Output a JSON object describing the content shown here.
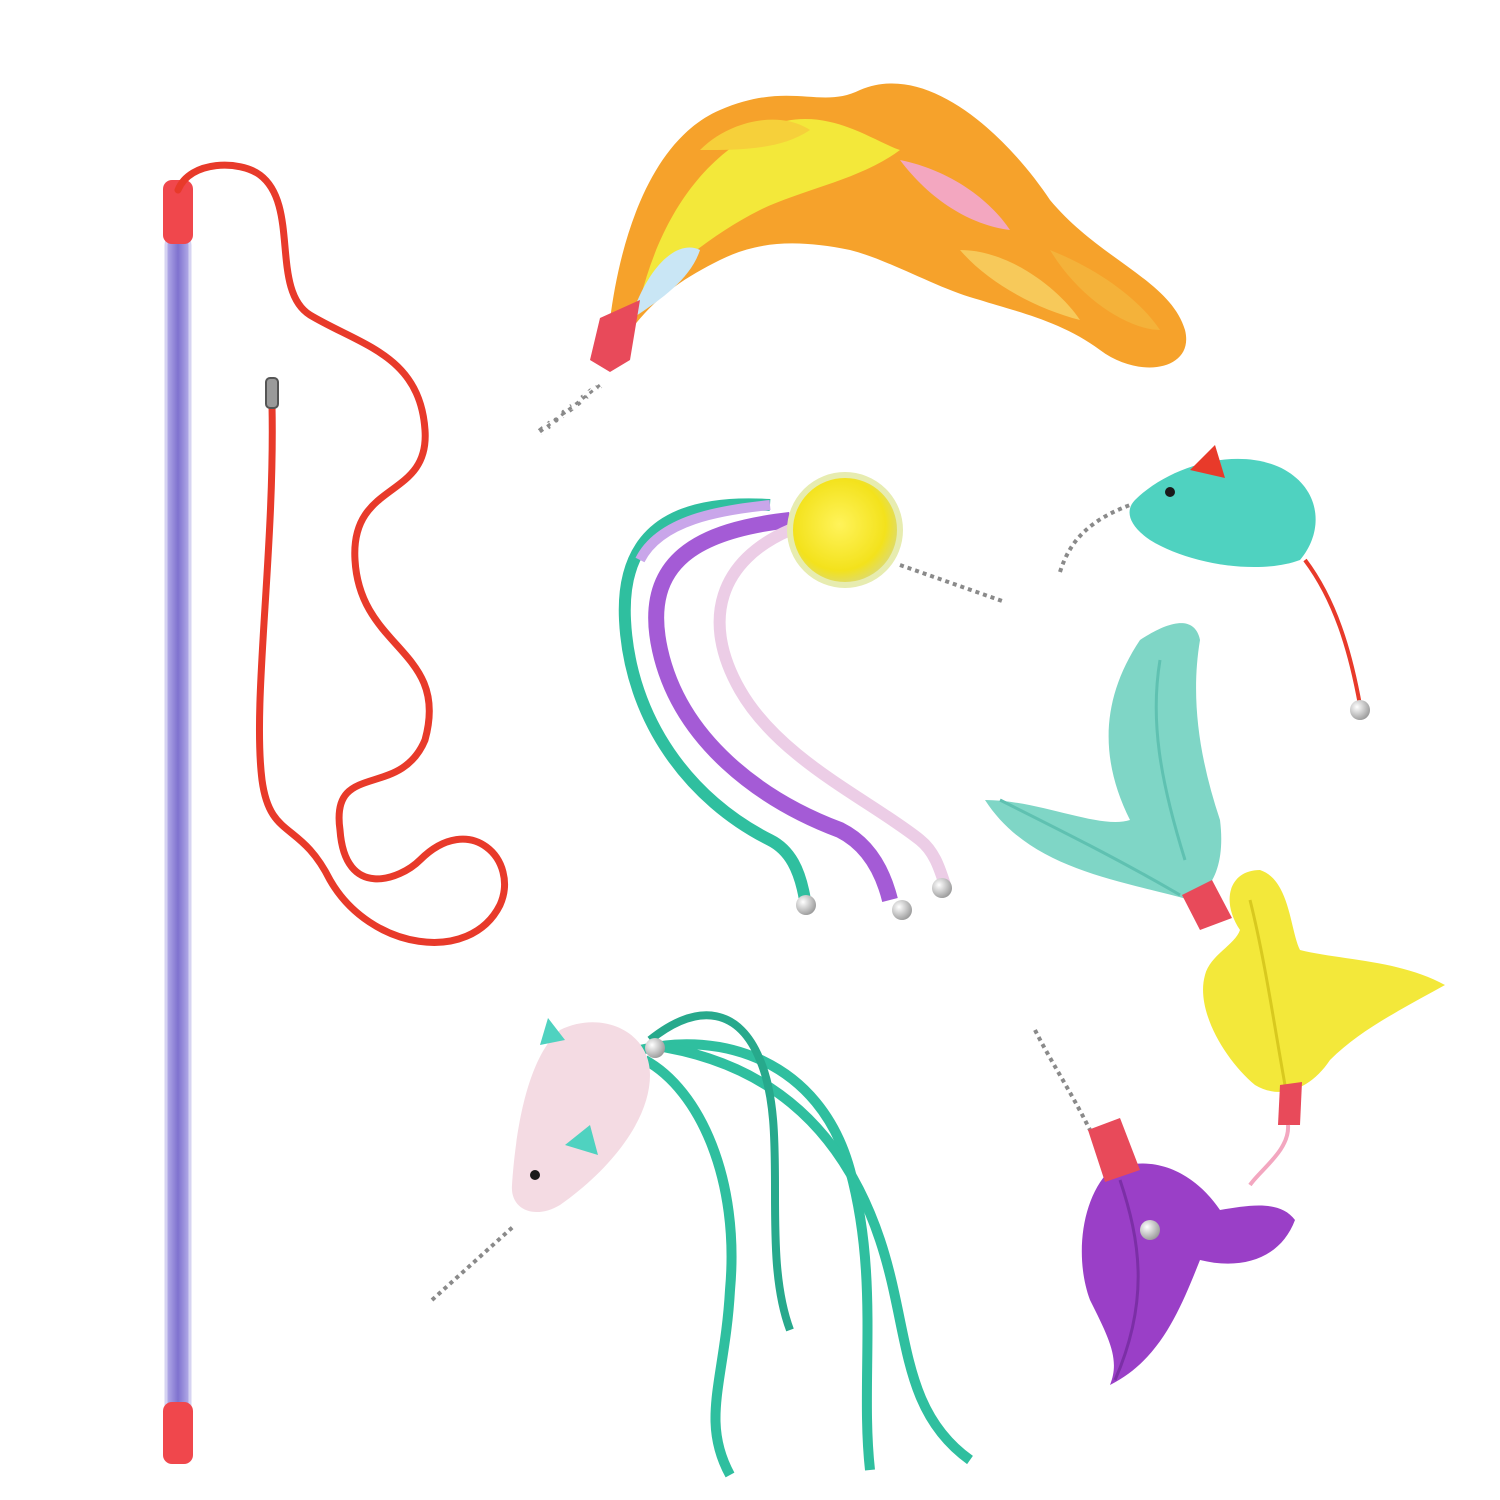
{
  "colors": {
    "background": "#ffffff",
    "wand_shaft": "#8f84d6",
    "wand_cap": "#f0474c",
    "cord": "#e83a2a",
    "chain": "#8a8a8a",
    "feather_orange": "#f6a22b",
    "feather_yellow": "#f3e83a",
    "feather_pink": "#f3a7c0",
    "feather_teal": "#7fd6c6",
    "feather_purple": "#9a3fc7",
    "ribbon_teal": "#2fbf9f",
    "ribbon_purple": "#a45bd6",
    "ribbon_pink": "#eccde6",
    "pom_yellow": "#f5ea24",
    "mouse_teal": "#4fd2c0",
    "mouse_pink": "#f4dbe3",
    "bell_silver": "#c9c9c9"
  },
  "objects": [
    "wand-stick",
    "elastic-cord",
    "marabou-feather-tail",
    "pompom-ribbon-teaser",
    "teal-plush-mouse",
    "teal-feather-teaser",
    "yellow-feather-teaser",
    "purple-feather-teaser",
    "pink-mouse-ribbon-teaser"
  ]
}
